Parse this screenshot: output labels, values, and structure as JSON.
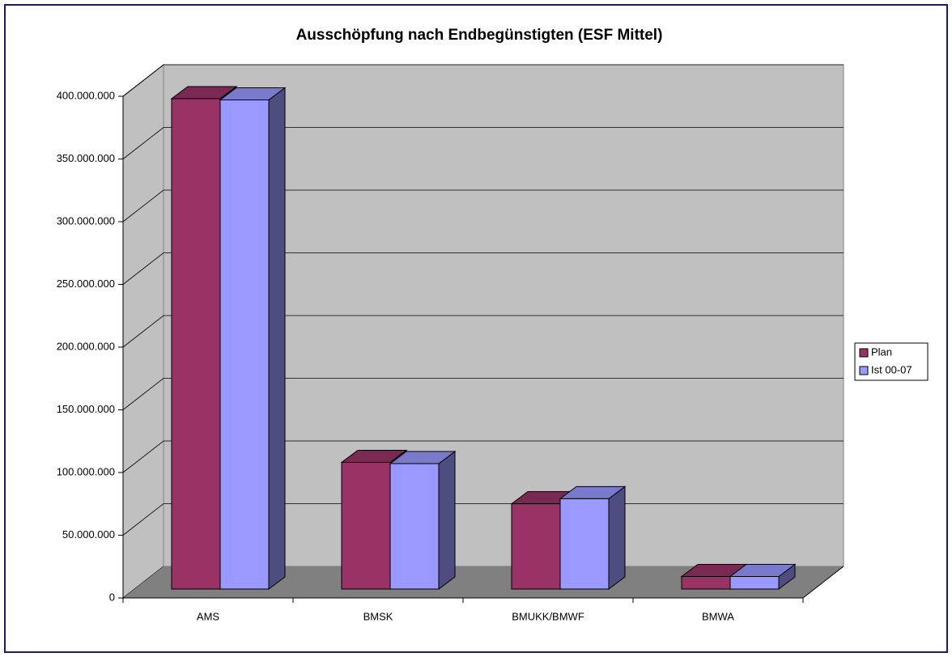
{
  "chart_data": {
    "type": "bar3d",
    "title": "Ausschöpfung nach Endbegünstigten (ESF Mittel)",
    "categories": [
      "AMS",
      "BMSK",
      "BMUKK/BMWF",
      "BMWA"
    ],
    "series": [
      {
        "name": "Plan",
        "color": "#993366",
        "values": [
          391000000,
          101000000,
          68000000,
          10000000
        ]
      },
      {
        "name": "Ist 00-07",
        "color": "#9999ff",
        "values": [
          390000000,
          100000000,
          72000000,
          10000000
        ]
      }
    ],
    "ylim": [
      0,
      400000000
    ],
    "yticks": [
      0,
      {
        "value": 50000000,
        "label": "50.000.000"
      },
      {
        "value": 100000000,
        "label": "100.000.000"
      },
      {
        "value": 150000000,
        "label": "150.000.000"
      },
      {
        "value": 200000000,
        "label": "200.000.000"
      },
      {
        "value": 250000000,
        "label": "250.000.000"
      },
      {
        "value": 300000000,
        "label": "300.000.000"
      },
      {
        "value": 350000000,
        "label": "350.000.000"
      },
      {
        "value": 400000000,
        "label": "400.000.000"
      }
    ],
    "grid": true,
    "legend": "right"
  }
}
